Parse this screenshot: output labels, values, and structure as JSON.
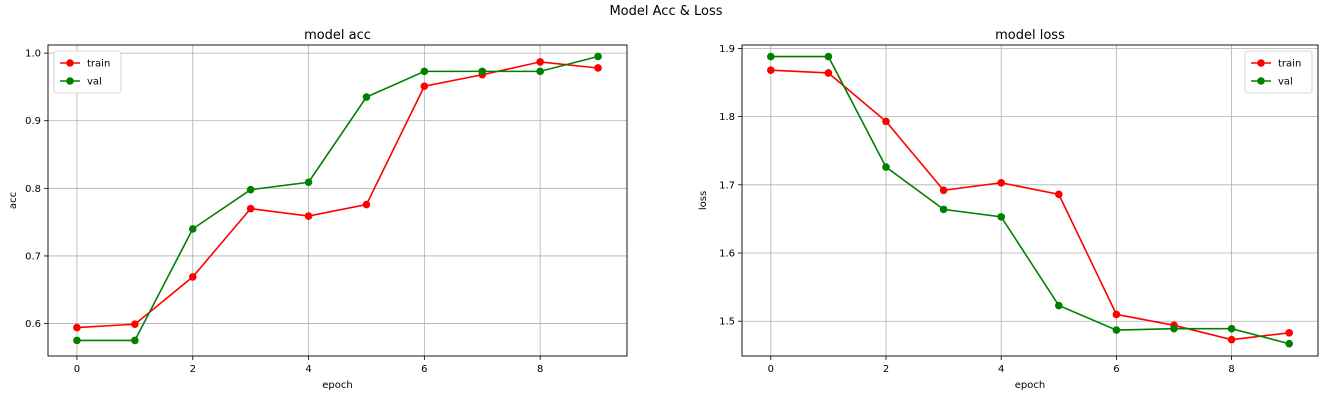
{
  "figure_title": "Model Acc & Loss",
  "chart_data": [
    {
      "type": "line",
      "title": "model acc",
      "xlabel": "epoch",
      "ylabel": "acc",
      "xlim": [
        -0.5,
        9.5
      ],
      "ylim": [
        0.552,
        1.012
      ],
      "xticks": [
        0,
        2,
        4,
        6,
        8
      ],
      "yticks": [
        0.6,
        0.7,
        0.8,
        0.9,
        1.0
      ],
      "ytick_labels": [
        "0.6",
        "0.7",
        "0.8",
        "0.9",
        "1.0"
      ],
      "grid": true,
      "legend": "upper left",
      "x": [
        0,
        1,
        2,
        3,
        4,
        5,
        6,
        7,
        8,
        9
      ],
      "series": [
        {
          "name": "train",
          "color": "#ff0000",
          "values": [
            0.594,
            0.599,
            0.669,
            0.77,
            0.759,
            0.776,
            0.951,
            0.968,
            0.987,
            0.978
          ]
        },
        {
          "name": "val",
          "color": "#008000",
          "values": [
            0.575,
            0.575,
            0.74,
            0.798,
            0.809,
            0.935,
            0.973,
            0.973,
            0.973,
            0.995
          ]
        }
      ]
    },
    {
      "type": "line",
      "title": "model loss",
      "xlabel": "epoch",
      "ylabel": "loss",
      "xlim": [
        -0.5,
        9.5
      ],
      "ylim": [
        1.449,
        1.905
      ],
      "xticks": [
        0,
        2,
        4,
        6,
        8
      ],
      "yticks": [
        1.5,
        1.6,
        1.7,
        1.8,
        1.9
      ],
      "ytick_labels": [
        "1.5",
        "1.6",
        "1.7",
        "1.8",
        "1.9"
      ],
      "grid": true,
      "legend": "upper right",
      "x": [
        0,
        1,
        2,
        3,
        4,
        5,
        6,
        7,
        8,
        9
      ],
      "series": [
        {
          "name": "train",
          "color": "#ff0000",
          "values": [
            1.868,
            1.864,
            1.793,
            1.692,
            1.703,
            1.686,
            1.51,
            1.494,
            1.473,
            1.483
          ]
        },
        {
          "name": "val",
          "color": "#008000",
          "values": [
            1.888,
            1.888,
            1.726,
            1.664,
            1.653,
            1.523,
            1.487,
            1.489,
            1.489,
            1.467
          ]
        }
      ]
    }
  ]
}
